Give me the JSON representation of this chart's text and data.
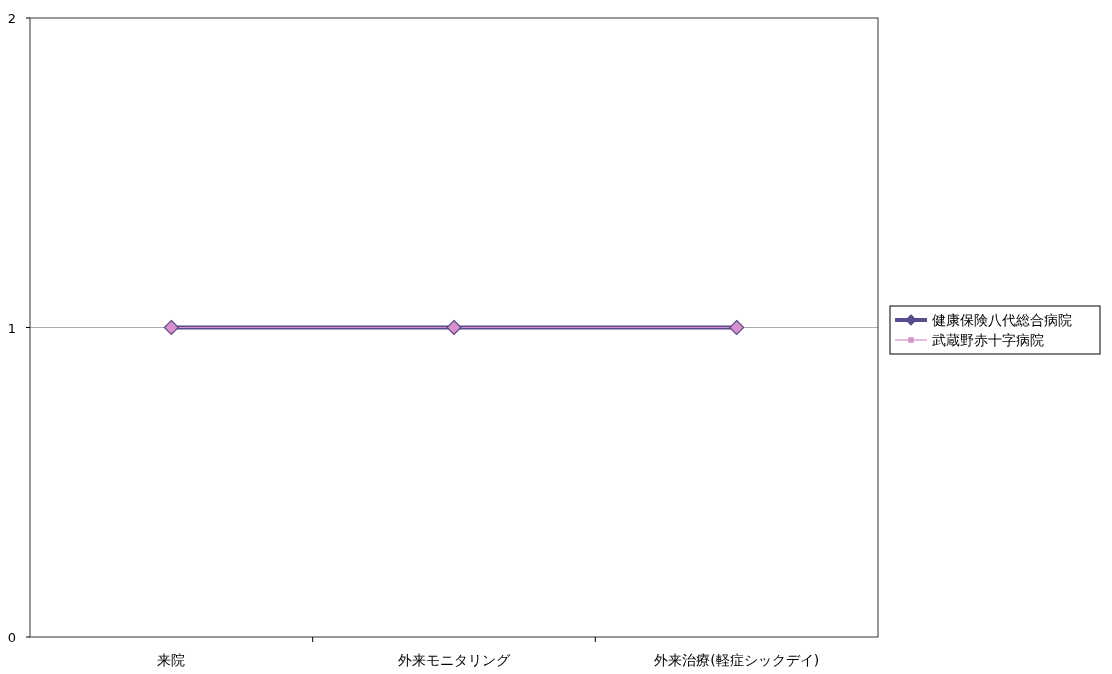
{
  "chart_data": {
    "type": "line",
    "categories": [
      "来院",
      "外来モニタリング",
      "外来治療(軽症シックデイ)"
    ],
    "series": [
      {
        "name": "健康保険八代総合病院",
        "color": "#5b4a8c",
        "values": [
          1,
          1,
          1
        ],
        "marker": "diamond"
      },
      {
        "name": "武蔵野赤十字病院",
        "color": "#d690cc",
        "values": [
          1,
          1,
          1
        ],
        "marker": "square"
      }
    ],
    "ylim": [
      0,
      2
    ],
    "yticks": [
      0,
      1,
      2
    ],
    "grid": "y",
    "legend": "right"
  }
}
